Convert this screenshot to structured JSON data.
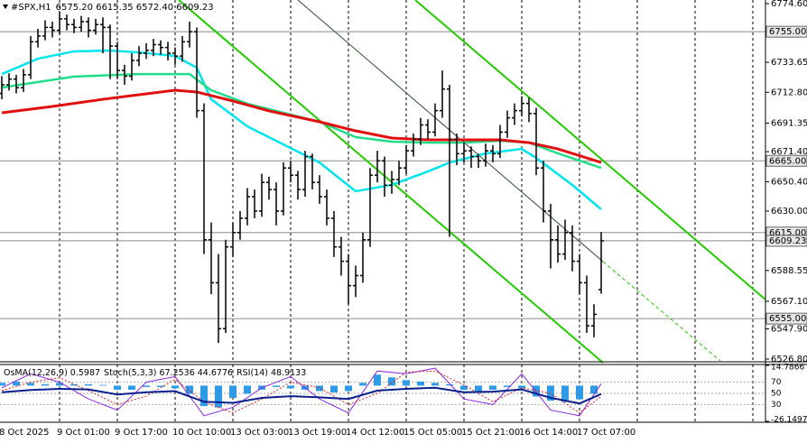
{
  "chart_data": [
    {
      "type": "ohlc",
      "title": "#SPX,H1",
      "subtitle": "6575.20 6615.35 6572.40 6609.23",
      "categories": [
        "8 Oct 2025",
        null,
        null,
        null,
        null,
        null,
        null,
        null,
        "9 Oct 01:00",
        null,
        null,
        null,
        null,
        null,
        null,
        null,
        "9 Oct 17:00",
        null,
        null,
        null,
        null,
        null,
        null,
        null,
        "10 Oct 10:00",
        null,
        null,
        null,
        null,
        null,
        null,
        null,
        "13 Oct 03:00",
        null,
        null,
        null,
        null,
        null,
        null,
        null,
        "13 Oct 19:00",
        null,
        null,
        null,
        null,
        null,
        null,
        null,
        "14 Oct 12:00",
        null,
        null,
        null,
        null,
        null,
        null,
        null,
        "15 Oct 05:00",
        null,
        null,
        null,
        null,
        null,
        null,
        null,
        "15 Oct 21:00",
        null,
        null,
        null,
        null,
        null,
        null,
        null,
        "16 Oct 14:00",
        null,
        null,
        null,
        null,
        null,
        null,
        null,
        "17 Oct 07:00",
        null,
        null,
        null
      ],
      "candles": [
        [
          6712,
          6724,
          6708,
          6718
        ],
        [
          6718,
          6726,
          6714,
          6722
        ],
        [
          6722,
          6725,
          6712,
          6716
        ],
        [
          6716,
          6729,
          6713,
          6725
        ],
        [
          6725,
          6752,
          6722,
          6748
        ],
        [
          6748,
          6757,
          6744,
          6752
        ],
        [
          6752,
          6763,
          6749,
          6758
        ],
        [
          6758,
          6762,
          6751,
          6756
        ],
        [
          6756,
          6769,
          6753,
          6764
        ],
        [
          6764,
          6767,
          6756,
          6760
        ],
        [
          6760,
          6764,
          6754,
          6758
        ],
        [
          6758,
          6766,
          6755,
          6762
        ],
        [
          6762,
          6765,
          6751,
          6756
        ],
        [
          6756,
          6764,
          6753,
          6760
        ],
        [
          6760,
          6765,
          6740,
          6758
        ],
        [
          6758,
          6760,
          6722,
          6745
        ],
        [
          6745,
          6748,
          6722,
          6728
        ],
        [
          6728,
          6732,
          6718,
          6724
        ],
        [
          6724,
          6740,
          6721,
          6735
        ],
        [
          6735,
          6745,
          6731,
          6740
        ],
        [
          6740,
          6747,
          6736,
          6742
        ],
        [
          6742,
          6750,
          6738,
          6746
        ],
        [
          6746,
          6749,
          6739,
          6744
        ],
        [
          6744,
          6748,
          6735,
          6740
        ],
        [
          6740,
          6744,
          6732,
          6738
        ],
        [
          6738,
          6752,
          6734,
          6748
        ],
        [
          6748,
          6762,
          6744,
          6755
        ],
        [
          6755,
          6758,
          6695,
          6700
        ],
        [
          6700,
          6705,
          6600,
          6610
        ],
        [
          6610,
          6622,
          6572,
          6580
        ],
        [
          6580,
          6600,
          6538,
          6548
        ],
        [
          6548,
          6610,
          6545,
          6605
        ],
        [
          6605,
          6622,
          6598,
          6615
        ],
        [
          6615,
          6630,
          6610,
          6625
        ],
        [
          6625,
          6646,
          6620,
          6640
        ],
        [
          6640,
          6645,
          6625,
          6630
        ],
        [
          6630,
          6656,
          6626,
          6650
        ],
        [
          6650,
          6654,
          6638,
          6645
        ],
        [
          6645,
          6650,
          6620,
          6630
        ],
        [
          6630,
          6664,
          6627,
          6660
        ],
        [
          6660,
          6665,
          6650,
          6655
        ],
        [
          6655,
          6658,
          6638,
          6645
        ],
        [
          6645,
          6672,
          6640,
          6668
        ],
        [
          6668,
          6670,
          6645,
          6650
        ],
        [
          6650,
          6655,
          6635,
          6640
        ],
        [
          6640,
          6645,
          6620,
          6625
        ],
        [
          6625,
          6630,
          6598,
          6605
        ],
        [
          6605,
          6612,
          6585,
          6595
        ],
        [
          6595,
          6600,
          6565,
          6578
        ],
        [
          6578,
          6592,
          6570,
          6585
        ],
        [
          6585,
          6615,
          6580,
          6610
        ],
        [
          6610,
          6660,
          6605,
          6655
        ],
        [
          6655,
          6672,
          6650,
          6665
        ],
        [
          6665,
          6668,
          6640,
          6648
        ],
        [
          6648,
          6658,
          6642,
          6652
        ],
        [
          6652,
          6665,
          6648,
          6660
        ],
        [
          6660,
          6676,
          6656,
          6672
        ],
        [
          6672,
          6684,
          6668,
          6680
        ],
        [
          6680,
          6695,
          6676,
          6690
        ],
        [
          6690,
          6694,
          6680,
          6685
        ],
        [
          6685,
          6705,
          6682,
          6700
        ],
        [
          6700,
          6728,
          6695,
          6715
        ],
        [
          6715,
          6718,
          6612,
          6680
        ],
        [
          6680,
          6684,
          6662,
          6670
        ],
        [
          6670,
          6678,
          6664,
          6672
        ],
        [
          6672,
          6675,
          6660,
          6668
        ],
        [
          6668,
          6670,
          6660,
          6665
        ],
        [
          6665,
          6677,
          6661,
          6672
        ],
        [
          6672,
          6676,
          6664,
          6670
        ],
        [
          6670,
          6690,
          6667,
          6685
        ],
        [
          6685,
          6700,
          6681,
          6695
        ],
        [
          6695,
          6705,
          6690,
          6700
        ],
        [
          6700,
          6710,
          6696,
          6705
        ],
        [
          6705,
          6709,
          6692,
          6698
        ],
        [
          6698,
          6702,
          6655,
          6660
        ],
        [
          6660,
          6665,
          6622,
          6630
        ],
        [
          6630,
          6635,
          6590,
          6610
        ],
        [
          6610,
          6620,
          6594,
          6600
        ],
        [
          6600,
          6624,
          6596,
          6615
        ],
        [
          6615,
          6620,
          6588,
          6595
        ],
        [
          6595,
          6600,
          6572,
          6580
        ],
        [
          6580,
          6585,
          6545,
          6550
        ],
        [
          6550,
          6565,
          6542,
          6558
        ],
        [
          6575.2,
          6615.35,
          6572.4,
          6609.23
        ]
      ],
      "color": "#000000",
      "ylim": [
        6526.8,
        6774.6
      ],
      "yticks": [
        {
          "value": 6774.6,
          "label": "6774.60"
        },
        {
          "value": 6733.65,
          "label": "6733.65"
        },
        {
          "value": 6712.8,
          "label": "6712.80"
        },
        {
          "value": 6691.35,
          "label": "6691.35"
        },
        {
          "value": 6671.4,
          "label": "6671.40"
        },
        {
          "value": 6650.4,
          "label": "6650.40"
        },
        {
          "value": 6630,
          "label": "6630.00"
        },
        {
          "value": 6588.55,
          "label": "6588.55"
        },
        {
          "value": 6567.1,
          "label": "6567.10"
        },
        {
          "value": 6547.9,
          "label": "6547.90"
        },
        {
          "value": 6526.8,
          "label": "6526.80"
        }
      ],
      "levels": [
        {
          "value": 6755,
          "label": "6755.00"
        },
        {
          "value": 6665,
          "label": "6665.00"
        },
        {
          "value": 6615,
          "label": "6615.00"
        },
        {
          "value": 6609.23,
          "label": "6609.23"
        },
        {
          "value": 6555,
          "label": "6555.00"
        }
      ],
      "series": [
        {
          "color": "#00e5ee",
          "x": [
            0,
            5,
            10,
            15,
            19,
            24,
            27,
            29,
            34,
            39,
            44,
            49,
            54,
            59,
            62,
            67,
            72,
            74,
            79,
            83
          ],
          "values": [
            6725.5,
            6736.2,
            6741.3,
            6741.9,
            6740.6,
            6738.1,
            6729.9,
            6707.9,
            6689,
            6676.4,
            6663.8,
            6643.8,
            6648.2,
            6657.6,
            6663.8,
            6670.1,
            6673.3,
            6667,
            6648.2,
            6631.2
          ]
        },
        {
          "color": "#22dd88",
          "x": [
            0,
            10,
            19,
            26,
            29,
            34,
            39,
            44,
            49,
            54,
            59,
            64,
            69,
            73,
            77,
            83
          ],
          "values": [
            6716.1,
            6723.7,
            6725.5,
            6725.5,
            6714.2,
            6704.8,
            6698.5,
            6692.2,
            6681.5,
            6678.4,
            6677.7,
            6677.7,
            6679,
            6677.7,
            6670.2,
            6660.1
          ]
        },
        {
          "color": "#e01010",
          "x": [
            0,
            7,
            14,
            24,
            27,
            32,
            37,
            44,
            49,
            54,
            59,
            64,
            69,
            73,
            77,
            83
          ],
          "values": [
            6698.5,
            6702.9,
            6707.9,
            6714.2,
            6713,
            6706.7,
            6699.8,
            6692.2,
            6685.9,
            6680.9,
            6679.6,
            6679.6,
            6679.6,
            6677.7,
            6673.3,
            6663.9
          ]
        }
      ]
    },
    {
      "type": "oscillator",
      "labels": [
        "OsMA(12,26,9)",
        "0.5987",
        "Stoch(5,3,3)",
        "67.2536",
        "44.6776",
        "RSI(14)",
        "48.9133"
      ],
      "osma": {
        "color": "#2f9be6",
        "x": [
          0,
          2,
          4,
          6,
          8,
          10,
          12,
          14,
          16,
          18,
          20,
          22,
          24,
          26,
          28,
          30,
          32,
          34,
          36,
          38,
          40,
          42,
          44,
          46,
          48,
          50,
          52,
          54,
          56,
          58,
          60,
          62,
          64,
          66,
          68,
          70,
          72,
          74,
          76,
          78,
          80,
          82
        ],
        "values": [
          2,
          3,
          2,
          1,
          2,
          1,
          1,
          0.5,
          -3,
          -3,
          -1,
          -1,
          -2,
          -6,
          -15,
          -16,
          -9,
          -6,
          -3,
          -1,
          -2,
          -3,
          -4,
          -5,
          -4,
          2,
          8,
          6,
          4,
          3,
          2,
          1,
          -3,
          -4,
          -3,
          -1,
          -2,
          -8,
          -11,
          -12,
          -10,
          -6
        ],
        "ylim": [
          -26.1497,
          14.7866
        ],
        "yticks": [
          14.7866,
          -26.1497
        ]
      },
      "ylim": [
        0,
        100
      ],
      "yticks": [
        30,
        50,
        70
      ],
      "series": [
        {
          "color": "#8a2be2",
          "x": [
            0,
            4,
            8,
            12,
            16,
            20,
            24,
            28,
            32,
            36,
            40,
            44,
            48,
            52,
            56,
            60,
            64,
            68,
            72,
            76,
            80,
            83
          ],
          "values": [
            60,
            85,
            70,
            40,
            20,
            70,
            80,
            10,
            25,
            60,
            80,
            40,
            15,
            90,
            85,
            95,
            40,
            30,
            85,
            20,
            10,
            67.2536
          ]
        },
        {
          "color": "#e02020",
          "dashed": true,
          "x": [
            0,
            4,
            8,
            12,
            16,
            20,
            24,
            28,
            32,
            36,
            40,
            44,
            48,
            52,
            56,
            60,
            64,
            68,
            72,
            76,
            80,
            83
          ],
          "values": [
            55,
            70,
            78,
            55,
            30,
            45,
            75,
            35,
            15,
            40,
            70,
            60,
            30,
            50,
            88,
            90,
            65,
            35,
            60,
            50,
            15,
            44.6776
          ]
        },
        {
          "color": "#0a1e8c",
          "x": [
            0,
            4,
            8,
            12,
            16,
            20,
            24,
            28,
            32,
            36,
            40,
            44,
            48,
            52,
            56,
            60,
            64,
            68,
            72,
            76,
            80,
            83
          ],
          "values": [
            52,
            56,
            58,
            57,
            48,
            52,
            54,
            35,
            33,
            42,
            45,
            43,
            40,
            55,
            58,
            60,
            52,
            53,
            57,
            42,
            32,
            48.9133
          ]
        }
      ]
    }
  ]
}
